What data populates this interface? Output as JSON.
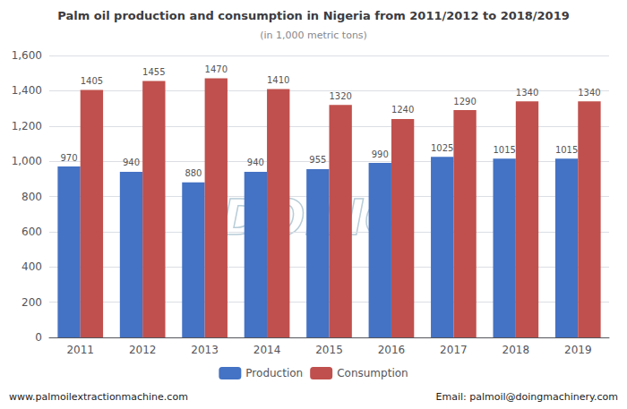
{
  "chart_data": {
    "type": "bar",
    "title": "Palm oil production and consumption in Nigeria from 2011/2012 to 2018/2019",
    "subtitle": "(in 1,000 metric tons)",
    "categories": [
      "2011",
      "2012",
      "2013",
      "2014",
      "2015",
      "2016",
      "2017",
      "2018",
      "2019"
    ],
    "series": [
      {
        "name": "Production",
        "color": "#4472C4",
        "values": [
          970,
          940,
          880,
          940,
          955,
          990,
          1025,
          1015,
          1015
        ]
      },
      {
        "name": "Consumption",
        "color": "#C0504D",
        "values": [
          1405,
          1455,
          1470,
          1410,
          1320,
          1240,
          1290,
          1340,
          1340
        ]
      }
    ],
    "ylim": [
      0,
      1600
    ],
    "yticks": [
      0,
      200,
      400,
      600,
      800,
      1000,
      1200,
      1400,
      1600
    ],
    "grid": true,
    "data_labels": true,
    "legend": "bottom",
    "annotations": [
      "www.palmoilextractionmachine.com",
      "Email: palmoil@doingmachinery.com",
      "DOING"
    ]
  }
}
